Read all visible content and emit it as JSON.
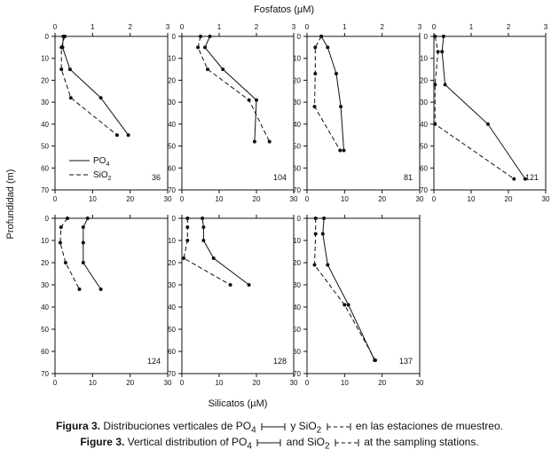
{
  "figure": {
    "top_title": "Fosfatos (µM)",
    "bottom_title": "Silicatos (µM)",
    "y_title": "Profundidad (m)"
  },
  "legend": {
    "po4_label": "PO",
    "po4_sub": "4",
    "sio2_label": "SiO",
    "sio2_sub": "2"
  },
  "captions": {
    "es": {
      "lead": "Figura 3.",
      "pre": " Distribuciones verticales de PO",
      "sub1": "4",
      "mid": " y SiO",
      "sub2": "2",
      "post": " en las estaciones de muestreo."
    },
    "en": {
      "lead": "Figure 3.",
      "pre": " Vertical distribution of PO",
      "sub1": "4",
      "mid": " and SiO",
      "sub2": "2",
      "post": " at the sampling stations."
    }
  },
  "chart_data": [
    {
      "type": "line",
      "station": "36",
      "phosphate_axis": [
        0,
        1,
        2,
        3
      ],
      "silicate_axis": [
        0,
        10,
        20,
        30
      ],
      "depth_ticks": [
        0,
        10,
        20,
        30,
        40,
        50,
        60,
        70
      ],
      "series": [
        {
          "name": "PO4",
          "style": "solid",
          "values_uM": [
            0.22,
            0.2,
            0.4,
            1.22,
            1.95
          ],
          "depth_m": [
            0,
            5,
            15,
            28,
            45
          ]
        },
        {
          "name": "SiO2",
          "style": "dashed",
          "values_uM": [
            2.6,
            1.7,
            1.7,
            4.2,
            16.5
          ],
          "depth_m": [
            0,
            5,
            15,
            28,
            45
          ]
        }
      ]
    },
    {
      "type": "line",
      "station": "104",
      "phosphate_axis": [
        0,
        1,
        2,
        3
      ],
      "silicate_axis": [
        0,
        10,
        20,
        30
      ],
      "depth_ticks": [
        0,
        10,
        20,
        30,
        40,
        50,
        60,
        70
      ],
      "series": [
        {
          "name": "PO4",
          "style": "solid",
          "values_uM": [
            0.75,
            0.62,
            1.1,
            2.0,
            1.95
          ],
          "depth_m": [
            0,
            5,
            15,
            29,
            48
          ]
        },
        {
          "name": "SiO2",
          "style": "dashed",
          "values_uM": [
            5.0,
            4.3,
            6.9,
            18.0,
            23.5
          ],
          "depth_m": [
            0,
            5,
            15,
            29,
            48
          ]
        }
      ]
    },
    {
      "type": "line",
      "station": "81",
      "phosphate_axis": [
        0,
        1,
        2,
        3
      ],
      "silicate_axis": [
        0,
        10,
        20,
        30
      ],
      "depth_ticks": [
        0,
        10,
        20,
        30,
        40,
        50,
        60,
        70
      ],
      "series": [
        {
          "name": "PO4",
          "style": "solid",
          "values_uM": [
            0.38,
            0.55,
            0.78,
            0.9,
            0.98
          ],
          "depth_m": [
            0,
            5,
            17,
            32,
            52
          ]
        },
        {
          "name": "SiO2",
          "style": "dashed",
          "values_uM": [
            3.8,
            2.2,
            2.2,
            2.0,
            8.8
          ],
          "depth_m": [
            0,
            5,
            17,
            32,
            52
          ]
        }
      ]
    },
    {
      "type": "line",
      "station": "121",
      "phosphate_axis": [
        0,
        1,
        2,
        3
      ],
      "silicate_axis": [
        0,
        10,
        20,
        30
      ],
      "depth_ticks": [
        0,
        10,
        20,
        30,
        40,
        50,
        60,
        70
      ],
      "series": [
        {
          "name": "PO4",
          "style": "solid",
          "values_uM": [
            0.26,
            0.22,
            0.3,
            1.45,
            2.45
          ],
          "depth_m": [
            0,
            7,
            22,
            40,
            65
          ]
        },
        {
          "name": "SiO2",
          "style": "dashed",
          "values_uM": [
            0.3,
            1.1,
            0.3,
            0.3,
            21.5
          ],
          "depth_m": [
            0,
            7,
            22,
            40,
            65
          ]
        }
      ]
    },
    {
      "type": "line",
      "station": "124",
      "phosphate_axis": [
        0,
        1,
        2,
        3
      ],
      "silicate_axis": [
        0,
        10,
        20,
        30
      ],
      "depth_ticks": [
        0,
        10,
        20,
        30,
        40,
        50,
        60,
        70
      ],
      "series": [
        {
          "name": "PO4",
          "style": "solid",
          "values_uM": [
            0.87,
            0.75,
            0.75,
            0.75,
            1.22
          ],
          "depth_m": [
            0,
            4,
            11,
            20,
            32
          ]
        },
        {
          "name": "SiO2",
          "style": "dashed",
          "values_uM": [
            3.3,
            1.6,
            1.4,
            2.8,
            6.5
          ],
          "depth_m": [
            0,
            4,
            11,
            20,
            32
          ]
        }
      ]
    },
    {
      "type": "line",
      "station": "128",
      "phosphate_axis": [
        0,
        1,
        2,
        3
      ],
      "silicate_axis": [
        0,
        10,
        20,
        30
      ],
      "depth_ticks": [
        0,
        10,
        20,
        30,
        40,
        50,
        60,
        70
      ],
      "series": [
        {
          "name": "PO4",
          "style": "solid",
          "values_uM": [
            0.55,
            0.58,
            0.58,
            0.85,
            1.8
          ],
          "depth_m": [
            0,
            4,
            10,
            18,
            30
          ]
        },
        {
          "name": "SiO2",
          "style": "dashed",
          "values_uM": [
            1.5,
            1.5,
            1.5,
            0.5,
            13.0
          ],
          "depth_m": [
            0,
            4,
            10,
            18,
            30
          ]
        }
      ]
    },
    {
      "type": "line",
      "station": "137",
      "phosphate_axis": [
        0,
        1,
        2,
        3
      ],
      "silicate_axis": [
        0,
        10,
        20,
        30
      ],
      "depth_ticks": [
        0,
        10,
        20,
        30,
        40,
        50,
        60,
        70
      ],
      "series": [
        {
          "name": "PO4",
          "style": "solid",
          "values_uM": [
            0.45,
            0.42,
            0.55,
            1.1,
            1.8
          ],
          "depth_m": [
            0,
            7,
            21,
            39,
            64
          ]
        },
        {
          "name": "SiO2",
          "style": "dashed",
          "values_uM": [
            2.3,
            2.3,
            2.0,
            10.0,
            18.2
          ],
          "depth_m": [
            0,
            7,
            21,
            39,
            64
          ]
        }
      ]
    }
  ]
}
